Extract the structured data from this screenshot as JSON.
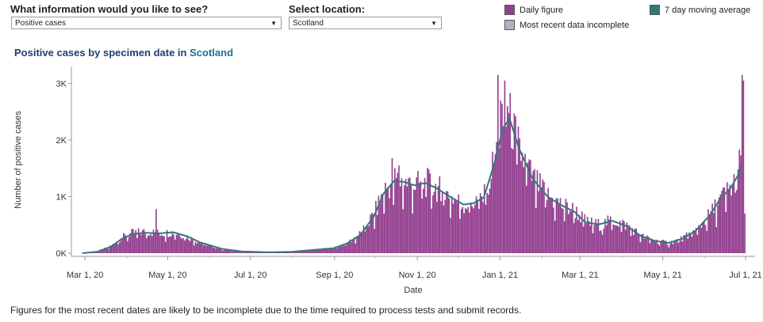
{
  "controls": {
    "info_question": "What information would you like to see?",
    "info_value": "Positive cases",
    "location_question": "Select location:",
    "location_value": "Scotland"
  },
  "legend": {
    "daily": "Daily figure",
    "incomplete": "Most recent data incomplete",
    "average": "7 day moving average"
  },
  "colors": {
    "daily": "#933f8f",
    "incomplete": "#b3b0c4",
    "average": "#2e7a78"
  },
  "title": {
    "prefix": "Positive cases by specimen date in",
    "location": "Scotland"
  },
  "footnote": "Figures for the most recent dates are likely to be incomplete due to the time required to process tests and submit records.",
  "chart_data": {
    "type": "bar",
    "xlabel": "Date",
    "ylabel": "Number of positive cases",
    "x_range": [
      "2020-02-20",
      "2021-07-08"
    ],
    "ylim": [
      0,
      3300
    ],
    "y_ticks": [
      {
        "value": 0,
        "label": "0K"
      },
      {
        "value": 1000,
        "label": "1K"
      },
      {
        "value": 2000,
        "label": "2K"
      },
      {
        "value": 3000,
        "label": "3K"
      }
    ],
    "x_ticks": [
      {
        "date": "2020-03-01",
        "label": "Mar 1, 20"
      },
      {
        "date": "2020-05-01",
        "label": "May 1, 20"
      },
      {
        "date": "2020-07-01",
        "label": "Jul 1, 20"
      },
      {
        "date": "2020-09-01",
        "label": "Sep 1, 20"
      },
      {
        "date": "2020-11-01",
        "label": "Nov 1, 20"
      },
      {
        "date": "2021-01-01",
        "label": "Jan 1, 21"
      },
      {
        "date": "2021-03-01",
        "label": "Mar 1, 21"
      },
      {
        "date": "2021-05-01",
        "label": "May 1, 21"
      },
      {
        "date": "2021-07-01",
        "label": "Jul 1, 21"
      }
    ],
    "grid": false,
    "series": [
      {
        "name": "Daily figure",
        "type": "bar",
        "start_date": "2020-02-28",
        "anchors": [
          [
            "2020-02-28",
            0
          ],
          [
            "2020-03-10",
            30
          ],
          [
            "2020-03-20",
            130
          ],
          [
            "2020-03-28",
            280
          ],
          [
            "2020-04-05",
            360
          ],
          [
            "2020-04-15",
            380
          ],
          [
            "2020-04-25",
            350
          ],
          [
            "2020-05-05",
            370
          ],
          [
            "2020-05-15",
            290
          ],
          [
            "2020-05-25",
            180
          ],
          [
            "2020-06-10",
            70
          ],
          [
            "2020-06-25",
            30
          ],
          [
            "2020-07-15",
            15
          ],
          [
            "2020-08-01",
            25
          ],
          [
            "2020-08-15",
            60
          ],
          [
            "2020-08-31",
            90
          ],
          [
            "2020-09-10",
            180
          ],
          [
            "2020-09-20",
            350
          ],
          [
            "2020-09-30",
            700
          ],
          [
            "2020-10-07",
            1100
          ],
          [
            "2020-10-15",
            1300
          ],
          [
            "2020-10-22",
            1250
          ],
          [
            "2020-10-30",
            1200
          ],
          [
            "2020-11-07",
            1250
          ],
          [
            "2020-11-15",
            1150
          ],
          [
            "2020-11-25",
            1000
          ],
          [
            "2020-12-05",
            850
          ],
          [
            "2020-12-12",
            900
          ],
          [
            "2020-12-20",
            1000
          ],
          [
            "2020-12-28",
            1700
          ],
          [
            "2021-01-03",
            2300
          ],
          [
            "2021-01-08",
            2350
          ],
          [
            "2021-01-15",
            1800
          ],
          [
            "2021-01-25",
            1300
          ],
          [
            "2021-02-05",
            1000
          ],
          [
            "2021-02-15",
            850
          ],
          [
            "2021-02-25",
            750
          ],
          [
            "2021-03-05",
            550
          ],
          [
            "2021-03-15",
            500
          ],
          [
            "2021-03-25",
            580
          ],
          [
            "2021-04-05",
            480
          ],
          [
            "2021-04-15",
            300
          ],
          [
            "2021-04-25",
            220
          ],
          [
            "2021-05-05",
            180
          ],
          [
            "2021-05-15",
            260
          ],
          [
            "2021-05-25",
            400
          ],
          [
            "2021-06-05",
            700
          ],
          [
            "2021-06-12",
            950
          ],
          [
            "2021-06-20",
            1150
          ],
          [
            "2021-06-26",
            1550
          ]
        ],
        "spikes": [
          [
            "2020-04-22",
            780
          ],
          [
            "2020-10-13",
            1680
          ],
          [
            "2020-10-18",
            1550
          ],
          [
            "2020-12-30",
            3150
          ],
          [
            "2021-01-01",
            2700
          ],
          [
            "2021-01-04",
            3050
          ],
          [
            "2021-01-06",
            2600
          ],
          [
            "2021-06-28",
            3150
          ]
        ]
      },
      {
        "name": "Most recent data incomplete",
        "type": "bar",
        "points": [
          [
            "2021-06-29",
            3050
          ],
          [
            "2021-06-30",
            700
          ]
        ]
      },
      {
        "name": "7 day moving average",
        "type": "line",
        "points": [
          [
            "2020-02-28",
            0
          ],
          [
            "2020-03-10",
            25
          ],
          [
            "2020-03-20",
            110
          ],
          [
            "2020-03-28",
            250
          ],
          [
            "2020-04-05",
            340
          ],
          [
            "2020-04-15",
            360
          ],
          [
            "2020-04-25",
            350
          ],
          [
            "2020-05-05",
            370
          ],
          [
            "2020-05-15",
            300
          ],
          [
            "2020-05-25",
            190
          ],
          [
            "2020-06-10",
            75
          ],
          [
            "2020-06-25",
            30
          ],
          [
            "2020-07-15",
            15
          ],
          [
            "2020-08-01",
            25
          ],
          [
            "2020-08-15",
            55
          ],
          [
            "2020-08-31",
            85
          ],
          [
            "2020-09-10",
            170
          ],
          [
            "2020-09-20",
            320
          ],
          [
            "2020-09-30",
            650
          ],
          [
            "2020-10-07",
            1050
          ],
          [
            "2020-10-15",
            1280
          ],
          [
            "2020-10-22",
            1260
          ],
          [
            "2020-10-30",
            1200
          ],
          [
            "2020-11-07",
            1240
          ],
          [
            "2020-11-15",
            1150
          ],
          [
            "2020-11-25",
            1000
          ],
          [
            "2020-12-05",
            860
          ],
          [
            "2020-12-12",
            880
          ],
          [
            "2020-12-20",
            980
          ],
          [
            "2020-12-28",
            1600
          ],
          [
            "2021-01-03",
            2200
          ],
          [
            "2021-01-08",
            2380
          ],
          [
            "2021-01-15",
            1850
          ],
          [
            "2021-01-25",
            1320
          ],
          [
            "2021-02-05",
            1000
          ],
          [
            "2021-02-15",
            850
          ],
          [
            "2021-02-25",
            730
          ],
          [
            "2021-03-05",
            540
          ],
          [
            "2021-03-15",
            510
          ],
          [
            "2021-03-25",
            570
          ],
          [
            "2021-04-05",
            470
          ],
          [
            "2021-04-15",
            300
          ],
          [
            "2021-04-25",
            220
          ],
          [
            "2021-05-05",
            180
          ],
          [
            "2021-05-15",
            250
          ],
          [
            "2021-05-25",
            390
          ],
          [
            "2021-06-05",
            680
          ],
          [
            "2021-06-12",
            950
          ],
          [
            "2021-06-20",
            1150
          ],
          [
            "2021-06-26",
            1400
          ],
          [
            "2021-06-28",
            1550
          ]
        ]
      }
    ]
  }
}
